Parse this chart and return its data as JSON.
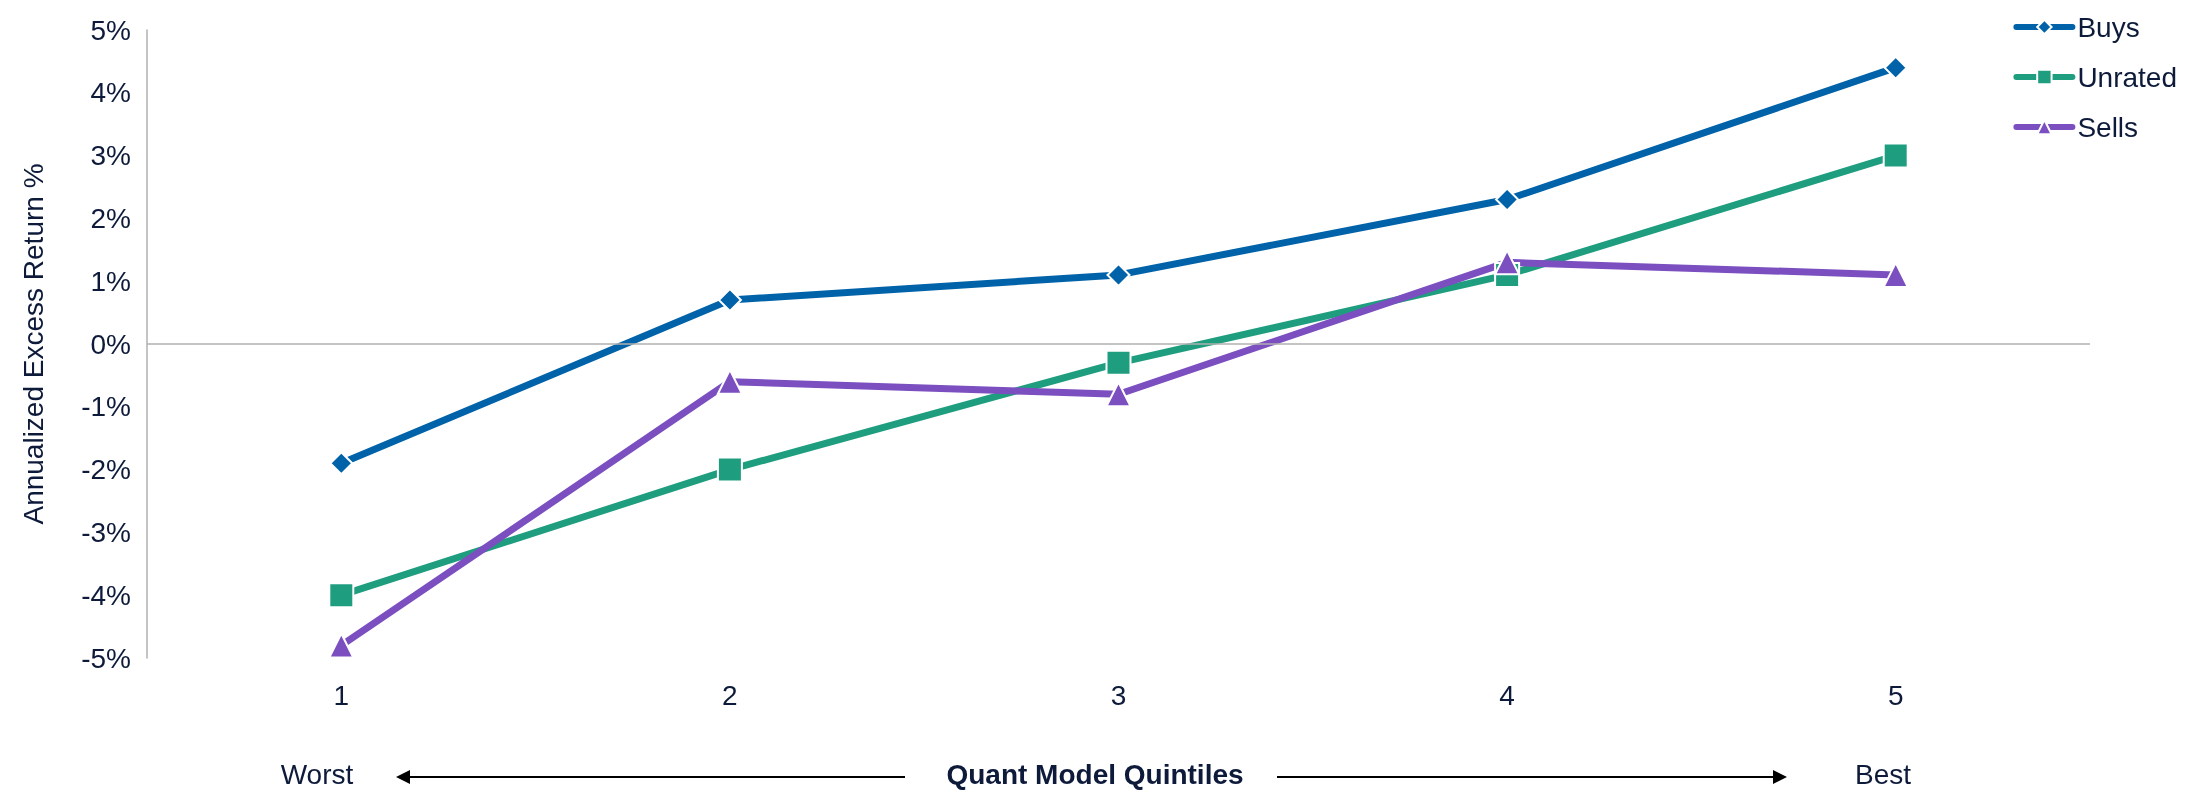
{
  "chart_data": {
    "type": "line",
    "categories": [
      "1",
      "2",
      "3",
      "4",
      "5"
    ],
    "xlabel": "Quant Model Quintiles",
    "ylabel": "Annualized Excess Return %",
    "ylim": [
      -5,
      5
    ],
    "yticks": [
      {
        "value": -5,
        "label": "-5%"
      },
      {
        "value": -4,
        "label": "-4%"
      },
      {
        "value": -3,
        "label": "-3%"
      },
      {
        "value": -2,
        "label": "-2%"
      },
      {
        "value": -1,
        "label": "-1%"
      },
      {
        "value": 0,
        "label": "0%"
      },
      {
        "value": 1,
        "label": "1%"
      },
      {
        "value": 2,
        "label": "2%"
      },
      {
        "value": 3,
        "label": "3%"
      },
      {
        "value": 4,
        "label": "4%"
      },
      {
        "value": 5,
        "label": "5%"
      }
    ],
    "series": [
      {
        "name": "Buys",
        "color": "#0062a8",
        "marker": "diamond",
        "values": [
          -1.9,
          0.7,
          1.1,
          2.3,
          4.4
        ]
      },
      {
        "name": "Unrated",
        "color": "#1f9e7f",
        "marker": "square",
        "values": [
          -4.0,
          -2.0,
          -0.3,
          1.1,
          3.0
        ]
      },
      {
        "name": "Sells",
        "color": "#7b4fc0",
        "marker": "triangle",
        "values": [
          -4.8,
          -0.6,
          -0.8,
          1.3,
          1.1
        ]
      }
    ],
    "annotations": [
      "Worst",
      "Best"
    ],
    "ref_lines": [
      {
        "axis": "y",
        "value": 0,
        "color": "#b0b0b0"
      }
    ],
    "grid": false,
    "legend": "top right",
    "line_style": "solid"
  }
}
